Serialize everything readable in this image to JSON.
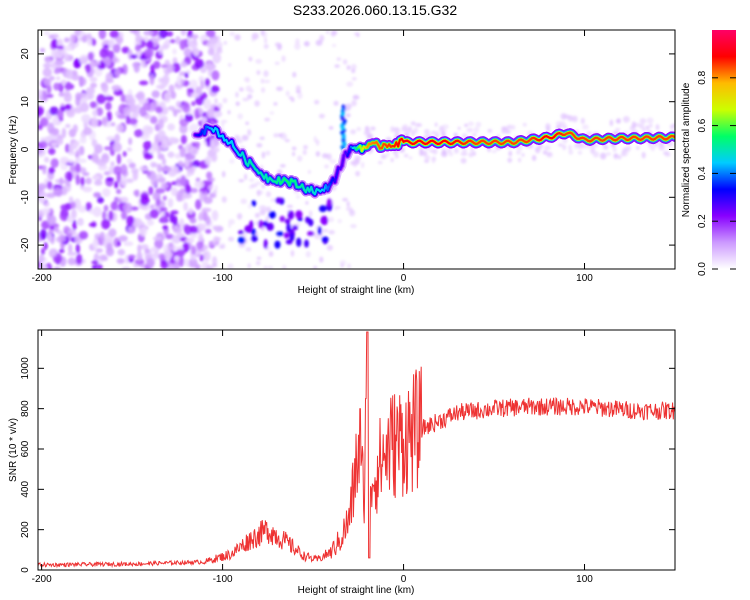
{
  "title": "S233.2026.060.13.15.G32",
  "chart_data": [
    {
      "type": "heatmap",
      "name": "spectrogram",
      "xlabel": "Height of straight line (km)",
      "ylabel": "Frequency (Hz)",
      "xlim": [
        -202,
        150
      ],
      "ylim": [
        -25,
        25
      ],
      "xticks": [
        -200,
        -100,
        0,
        100
      ],
      "yticks": [
        -20,
        -10,
        0,
        10,
        20
      ],
      "colorbar": {
        "label": "Normalized spectral amplitude",
        "range": [
          0,
          1
        ],
        "ticks": [
          0.0,
          0.2,
          0.4,
          0.6,
          0.8
        ],
        "colors": [
          "#ffffff",
          "#cc99ff",
          "#8800ff",
          "#0000ff",
          "#00ccff",
          "#00ff66",
          "#ccff00",
          "#ffbb00",
          "#ff0000",
          "#ff0066"
        ]
      },
      "ridge": {
        "x": [
          -115,
          -105,
          -95,
          -85,
          -75,
          -65,
          -55,
          -45,
          -38,
          -33,
          -30,
          -25,
          -20,
          -10,
          0,
          20,
          40,
          60,
          70,
          80,
          90,
          100,
          110,
          120,
          150
        ],
        "y": [
          3.5,
          4.5,
          1,
          -3,
          -6,
          -6.5,
          -8,
          -9,
          -6,
          -2,
          0,
          0.5,
          0.5,
          1,
          1.5,
          1.5,
          1.5,
          1.5,
          2,
          2.5,
          3.5,
          2,
          2.2,
          2.3,
          2.5
        ],
        "amplitude": [
          0.3,
          0.45,
          0.45,
          0.5,
          0.5,
          0.55,
          0.5,
          0.45,
          0.3,
          0.25,
          0.35,
          0.6,
          0.8,
          0.85,
          0.9,
          0.9,
          0.85,
          0.85,
          0.85,
          0.9,
          0.85,
          0.85,
          0.85,
          0.85,
          0.85
        ]
      }
    },
    {
      "type": "line",
      "name": "snr",
      "xlabel": "Height of straight line (km)",
      "ylabel": "SNR (10 * v/v)",
      "xlim": [
        -202,
        150
      ],
      "ylim": [
        0,
        1190
      ],
      "xticks": [
        -200,
        -100,
        0,
        100
      ],
      "yticks": [
        0,
        200,
        400,
        600,
        800,
        1000
      ],
      "color": "#ee3333",
      "envelope": {
        "x": [
          -202,
          -150,
          -110,
          -95,
          -85,
          -75,
          -65,
          -55,
          -48,
          -40,
          -35,
          -30,
          -27,
          -25,
          -22,
          -20,
          -17,
          -12,
          -7,
          0,
          5,
          15,
          30,
          50,
          70,
          100,
          130,
          150
        ],
        "y": [
          25,
          30,
          40,
          80,
          150,
          200,
          140,
          70,
          50,
          90,
          150,
          250,
          450,
          600,
          400,
          500,
          450,
          550,
          620,
          650,
          680,
          720,
          780,
          800,
          810,
          810,
          790,
          790
        ]
      },
      "spikes": [
        {
          "x": -20,
          "y": 1180
        },
        {
          "x": -21,
          "y": 850
        },
        {
          "x": -24,
          "y": 800
        },
        {
          "x": -19,
          "y": 60
        }
      ]
    }
  ]
}
